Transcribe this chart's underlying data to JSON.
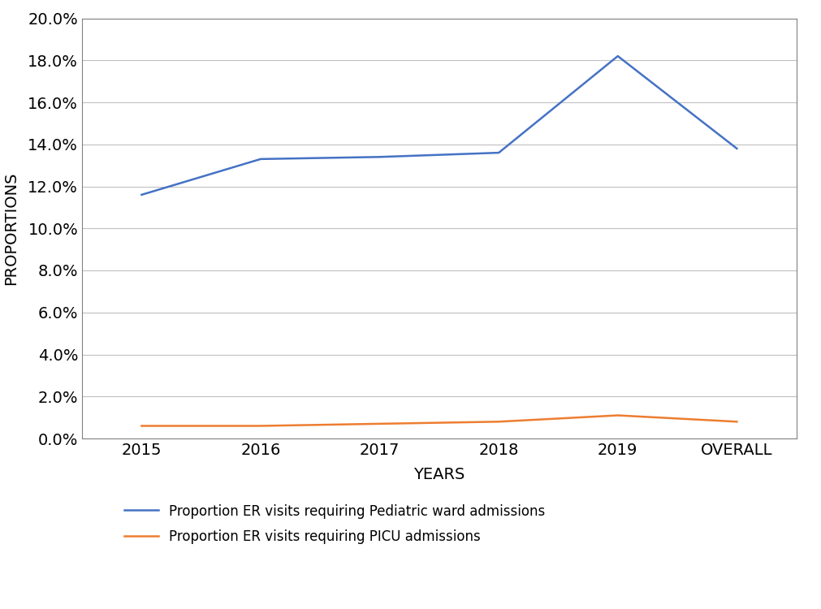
{
  "x_labels": [
    "2015",
    "2016",
    "2017",
    "2018",
    "2019",
    "OVERALL"
  ],
  "blue_line": [
    0.116,
    0.133,
    0.134,
    0.136,
    0.182,
    0.138
  ],
  "orange_line": [
    0.006,
    0.006,
    0.007,
    0.008,
    0.011,
    0.008
  ],
  "blue_color": "#4472C4",
  "orange_color": "#ED7D31",
  "ylabel": "PROPORTIONS",
  "xlabel": "YEARS",
  "ylim_min": 0.0,
  "ylim_max": 0.2,
  "ytick_step": 0.02,
  "legend_blue": "Proportion ER visits requiring Pediatric ward admissions",
  "legend_orange": "Proportion ER visits requiring PICU admissions",
  "line_width": 1.8,
  "background_color": "#ffffff",
  "grid_color": "#c0c0c0",
  "font_size_ticks": 14,
  "font_size_labels": 14,
  "font_size_legend": 12,
  "spine_color": "#808080"
}
